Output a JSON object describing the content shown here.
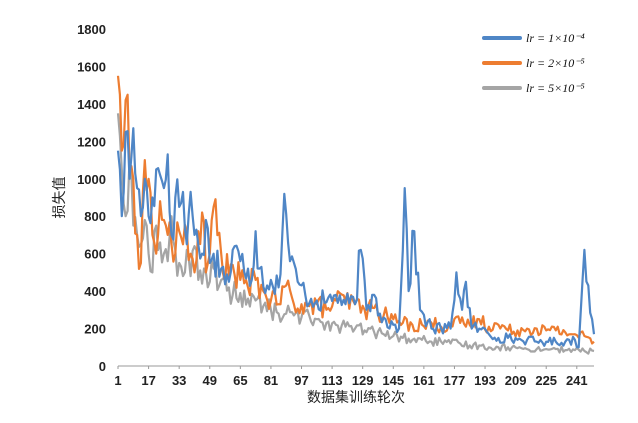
{
  "chart_data": {
    "type": "line",
    "xlabel": "数据集训练轮次",
    "ylabel": "损失值",
    "ylim": [
      0,
      1800
    ],
    "yticks": [
      0,
      200,
      400,
      600,
      800,
      1000,
      1200,
      1400,
      1600,
      1800
    ],
    "xlim": [
      1,
      250
    ],
    "xticks": [
      1,
      17,
      33,
      49,
      65,
      81,
      97,
      113,
      129,
      145,
      161,
      177,
      193,
      209,
      225,
      241
    ],
    "grid": false,
    "legend_position": "top-right",
    "series": [
      {
        "name": "lr = 1×10⁻⁴",
        "color": "#4f86c6",
        "keypoints": [
          [
            1,
            1150
          ],
          [
            2,
            1050
          ],
          [
            3,
            800
          ],
          [
            5,
            1250
          ],
          [
            7,
            1000
          ],
          [
            9,
            1270
          ],
          [
            11,
            950
          ],
          [
            13,
            800
          ],
          [
            15,
            1000
          ],
          [
            17,
            800
          ],
          [
            19,
            900
          ],
          [
            21,
            1050
          ],
          [
            23,
            1020
          ],
          [
            25,
            950
          ],
          [
            27,
            1130
          ],
          [
            29,
            700
          ],
          [
            31,
            900
          ],
          [
            33,
            850
          ],
          [
            35,
            930
          ],
          [
            37,
            650
          ],
          [
            39,
            930
          ],
          [
            41,
            700
          ],
          [
            43,
            650
          ],
          [
            45,
            600
          ],
          [
            47,
            780
          ],
          [
            49,
            550
          ],
          [
            51,
            600
          ],
          [
            55,
            520
          ],
          [
            59,
            450
          ],
          [
            61,
            620
          ],
          [
            65,
            560
          ],
          [
            69,
            520
          ],
          [
            71,
            460
          ],
          [
            73,
            720
          ],
          [
            75,
            520
          ],
          [
            79,
            430
          ],
          [
            81,
            460
          ],
          [
            85,
            420
          ],
          [
            88,
            920
          ],
          [
            91,
            560
          ],
          [
            95,
            450
          ],
          [
            99,
            380
          ],
          [
            105,
            350
          ],
          [
            110,
            340
          ],
          [
            115,
            380
          ],
          [
            120,
            330
          ],
          [
            125,
            330
          ],
          [
            128,
            620
          ],
          [
            131,
            300
          ],
          [
            135,
            380
          ],
          [
            138,
            280
          ],
          [
            141,
            250
          ],
          [
            145,
            220
          ],
          [
            148,
            200
          ],
          [
            151,
            950
          ],
          [
            153,
            400
          ],
          [
            156,
            720
          ],
          [
            159,
            300
          ],
          [
            165,
            200
          ],
          [
            170,
            200
          ],
          [
            175,
            200
          ],
          [
            178,
            500
          ],
          [
            181,
            300
          ],
          [
            183,
            450
          ],
          [
            186,
            200
          ],
          [
            190,
            200
          ],
          [
            195,
            170
          ],
          [
            200,
            150
          ],
          [
            205,
            150
          ],
          [
            210,
            140
          ],
          [
            215,
            140
          ],
          [
            220,
            130
          ],
          [
            225,
            130
          ],
          [
            230,
            130
          ],
          [
            235,
            130
          ],
          [
            240,
            140
          ],
          [
            242,
            100
          ],
          [
            245,
            620
          ],
          [
            247,
            430
          ],
          [
            249,
            250
          ],
          [
            250,
            170
          ]
        ]
      },
      {
        "name": "lr = 2×10⁻⁵",
        "color": "#ed7d31",
        "keypoints": [
          [
            1,
            1550
          ],
          [
            2,
            1450
          ],
          [
            3,
            1150
          ],
          [
            5,
            1420
          ],
          [
            7,
            1050
          ],
          [
            9,
            1000
          ],
          [
            11,
            700
          ],
          [
            13,
            550
          ],
          [
            15,
            1100
          ],
          [
            17,
            1000
          ],
          [
            19,
            700
          ],
          [
            21,
            600
          ],
          [
            23,
            880
          ],
          [
            25,
            780
          ],
          [
            27,
            700
          ],
          [
            29,
            650
          ],
          [
            31,
            600
          ],
          [
            33,
            720
          ],
          [
            35,
            650
          ],
          [
            37,
            720
          ],
          [
            39,
            600
          ],
          [
            41,
            500
          ],
          [
            43,
            720
          ],
          [
            45,
            820
          ],
          [
            47,
            500
          ],
          [
            49,
            600
          ],
          [
            51,
            850
          ],
          [
            55,
            600
          ],
          [
            59,
            480
          ],
          [
            61,
            540
          ],
          [
            65,
            460
          ],
          [
            69,
            420
          ],
          [
            73,
            460
          ],
          [
            77,
            400
          ],
          [
            81,
            350
          ],
          [
            85,
            330
          ],
          [
            89,
            430
          ],
          [
            93,
            330
          ],
          [
            97,
            330
          ],
          [
            101,
            320
          ],
          [
            105,
            330
          ],
          [
            110,
            300
          ],
          [
            115,
            350
          ],
          [
            120,
            350
          ],
          [
            125,
            330
          ],
          [
            130,
            300
          ],
          [
            135,
            310
          ],
          [
            140,
            270
          ],
          [
            145,
            250
          ],
          [
            150,
            230
          ],
          [
            155,
            220
          ],
          [
            160,
            220
          ],
          [
            165,
            230
          ],
          [
            170,
            210
          ],
          [
            175,
            220
          ],
          [
            180,
            230
          ],
          [
            185,
            220
          ],
          [
            190,
            250
          ],
          [
            195,
            210
          ],
          [
            200,
            220
          ],
          [
            205,
            190
          ],
          [
            210,
            190
          ],
          [
            215,
            200
          ],
          [
            220,
            200
          ],
          [
            225,
            190
          ],
          [
            230,
            190
          ],
          [
            235,
            180
          ],
          [
            240,
            170
          ],
          [
            245,
            160
          ],
          [
            250,
            130
          ]
        ]
      },
      {
        "name": "lr = 5×10⁻⁵",
        "color": "#a5a5a5",
        "keypoints": [
          [
            1,
            1350
          ],
          [
            2,
            1230
          ],
          [
            3,
            1050
          ],
          [
            5,
            800
          ],
          [
            7,
            1100
          ],
          [
            9,
            750
          ],
          [
            11,
            700
          ],
          [
            13,
            650
          ],
          [
            15,
            780
          ],
          [
            17,
            600
          ],
          [
            19,
            500
          ],
          [
            21,
            750
          ],
          [
            23,
            660
          ],
          [
            25,
            600
          ],
          [
            27,
            560
          ],
          [
            29,
            800
          ],
          [
            31,
            620
          ],
          [
            33,
            550
          ],
          [
            35,
            480
          ],
          [
            37,
            620
          ],
          [
            39,
            480
          ],
          [
            41,
            640
          ],
          [
            43,
            460
          ],
          [
            45,
            440
          ],
          [
            47,
            500
          ],
          [
            49,
            450
          ],
          [
            51,
            520
          ],
          [
            55,
            460
          ],
          [
            59,
            420
          ],
          [
            61,
            380
          ],
          [
            65,
            390
          ],
          [
            69,
            360
          ],
          [
            73,
            350
          ],
          [
            77,
            320
          ],
          [
            81,
            300
          ],
          [
            85,
            280
          ],
          [
            89,
            280
          ],
          [
            93,
            270
          ],
          [
            97,
            260
          ],
          [
            101,
            270
          ],
          [
            105,
            250
          ],
          [
            110,
            230
          ],
          [
            115,
            220
          ],
          [
            120,
            210
          ],
          [
            125,
            200
          ],
          [
            130,
            190
          ],
          [
            135,
            180
          ],
          [
            140,
            170
          ],
          [
            145,
            160
          ],
          [
            150,
            150
          ],
          [
            155,
            140
          ],
          [
            160,
            140
          ],
          [
            165,
            130
          ],
          [
            170,
            130
          ],
          [
            175,
            120
          ],
          [
            180,
            120
          ],
          [
            185,
            110
          ],
          [
            190,
            110
          ],
          [
            195,
            100
          ],
          [
            200,
            100
          ],
          [
            205,
            100
          ],
          [
            210,
            95
          ],
          [
            215,
            90
          ],
          [
            220,
            90
          ],
          [
            225,
            90
          ],
          [
            230,
            90
          ],
          [
            235,
            85
          ],
          [
            240,
            85
          ],
          [
            245,
            80
          ],
          [
            250,
            80
          ]
        ]
      }
    ]
  }
}
